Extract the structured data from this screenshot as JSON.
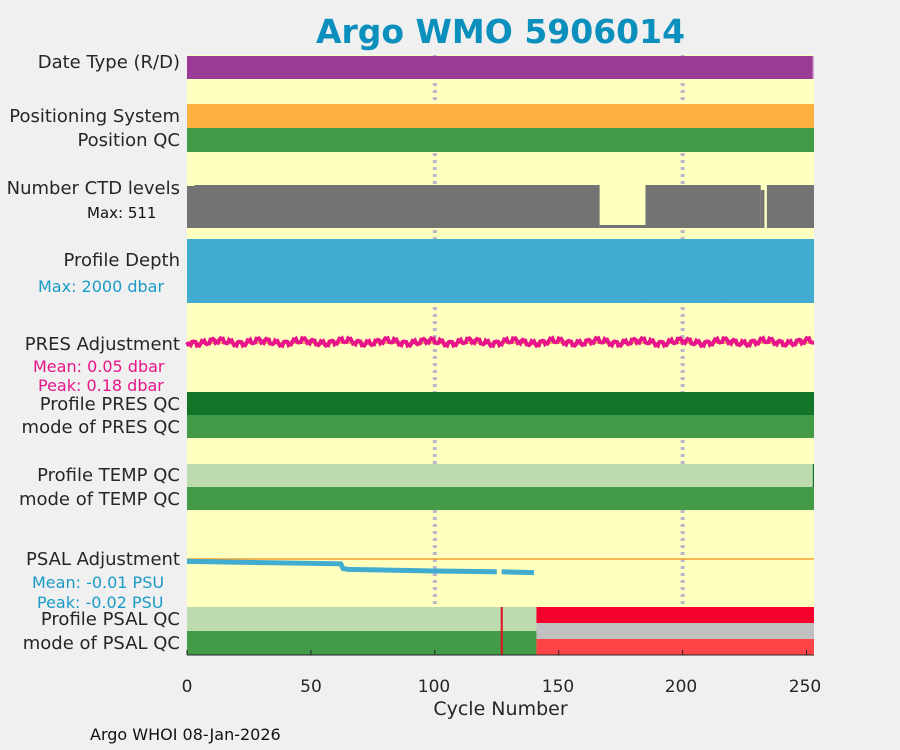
{
  "chart_data": {
    "type": "table",
    "title": "Argo WMO 5906014",
    "xlabel": "Cycle Number",
    "xlim": [
      0,
      253
    ],
    "xticks": [
      0,
      50,
      100,
      150,
      200,
      250
    ],
    "gridlines_at": [
      100,
      200
    ],
    "rows": {
      "date_type": {
        "label": "Date Type (R/D)",
        "color": "#9a3c96"
      },
      "positioning_system": {
        "label": "Positioning System",
        "color": "#fbb040"
      },
      "position_qc": {
        "label": "Position QC",
        "color": "#449b47"
      },
      "ctd_levels": {
        "label": "Number CTD levels",
        "max_label": "Max: 511",
        "max": 511,
        "color": "#737373"
      },
      "profile_depth": {
        "label": "Profile Depth",
        "max_label": "Max: 2000 dbar",
        "max": 2000,
        "color": "#42abd0"
      },
      "pres_adjustment": {
        "label": "PRES Adjustment",
        "mean_label": "Mean: 0.05 dbar",
        "peak_label": "Peak: 0.18 dbar",
        "mean": 0.05,
        "peak": 0.18,
        "color": "#e8158a"
      },
      "profile_pres_qc": {
        "label": "Profile PRES QC",
        "color": "#137529"
      },
      "mode_pres_qc": {
        "label": "mode of PRES QC",
        "color": "#449b47"
      },
      "profile_temp_qc": {
        "label": "Profile TEMP QC",
        "color": "#bcdcaf"
      },
      "mode_temp_qc": {
        "label": "mode of TEMP QC",
        "color": "#449b47"
      },
      "psal_adjustment": {
        "label": "PSAL Adjustment",
        "mean_label": "Mean: -0.01 PSU",
        "peak_label": "Peak: -0.02 PSU",
        "mean": -0.01,
        "peak": -0.02,
        "color": "#42abd0",
        "points": [
          [
            0,
            -0.003
          ],
          [
            62,
            -0.006
          ],
          [
            63,
            -0.012
          ],
          [
            65,
            -0.013
          ],
          [
            100,
            -0.015
          ],
          [
            125,
            -0.016
          ],
          [
            127,
            -0.016
          ],
          [
            140,
            -0.017
          ]
        ]
      },
      "profile_psal_qc": {
        "label": "Profile PSAL QC",
        "color": "#bcdcaf",
        "red_from_cycle": 141,
        "red_marker_cycle": 127
      },
      "mode_psal_qc": {
        "label": "mode of PSAL QC",
        "color": "#449b47",
        "grey_red_from_cycle": 141
      }
    }
  },
  "footer": "Argo WHOI 08-Jan-2026"
}
